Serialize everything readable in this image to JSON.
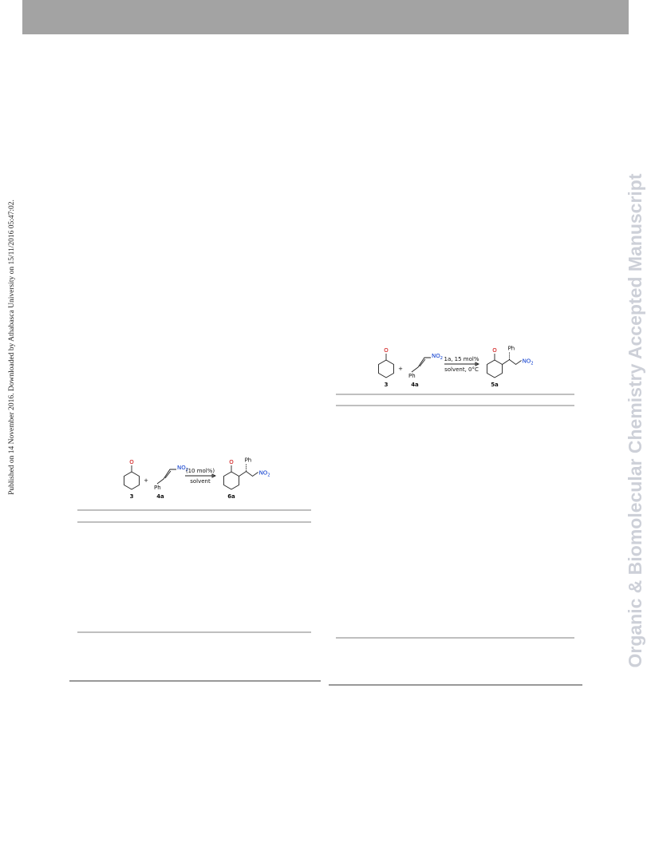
{
  "header": {
    "side_note": "Published on 14 November 2016. Downloaded by Athabasca University on 15/11/2016 05:47:02.",
    "watermark": "Organic & Biomolecular Chemistry Accepted Manuscript"
  },
  "schemes": [
    {
      "oxygen": "O",
      "plus": "+",
      "substituent": "Ph",
      "nitro": "NO",
      "nitro_sub": "2",
      "conditions_top": "(10 mol%)",
      "conditions_bottom": "solvent",
      "product_oxygen": "O",
      "product_substituent": "Ph",
      "product_nitro": "NO",
      "product_nitro_sub": "2",
      "labels": [
        "3",
        "4a",
        "6a"
      ]
    },
    {
      "oxygen": "O",
      "plus": "+",
      "substituent": "Ph",
      "nitro": "NO",
      "nitro_sub": "2",
      "conditions_top": "1a, 15 mol%",
      "conditions_bottom": "solvent, 0°C",
      "product_oxygen": "O",
      "product_substituent": "Ph",
      "product_nitro": "NO",
      "product_nitro_sub": "2",
      "labels": [
        "3",
        "4a",
        "5a"
      ]
    }
  ]
}
